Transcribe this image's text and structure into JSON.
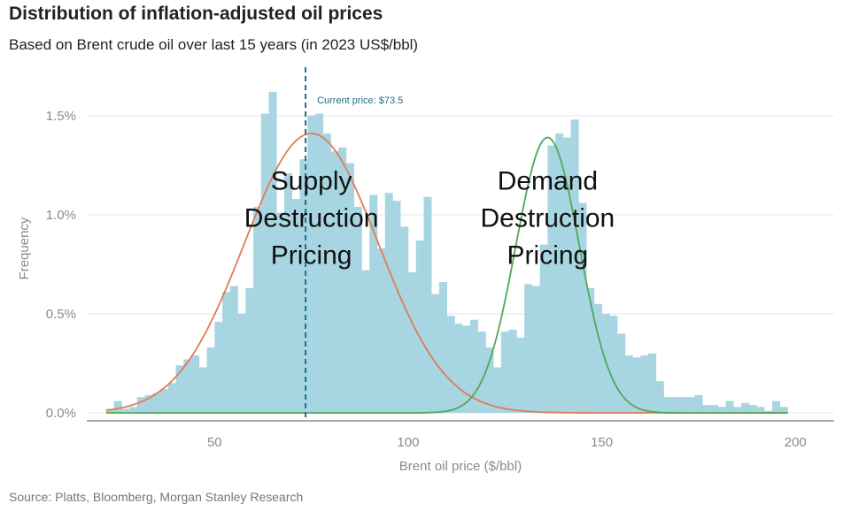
{
  "header": {
    "title": "Distribution of inflation-adjusted oil prices",
    "subtitle": "Based on Brent crude oil over last 15 years (in 2023 US$/bbl)"
  },
  "footer": {
    "source": "Source: Platts, Bloomberg, Morgan Stanley Research"
  },
  "colors": {
    "bars": "#a8d5e2",
    "supply_curve": "#e07b54",
    "demand_curve": "#4daa57",
    "current_price_line": "#1f6e8c",
    "grid": "#e6e6e6"
  },
  "chart_data": {
    "type": "bar",
    "xlabel": "Brent oil price ($/bbl)",
    "ylabel": "Frequency",
    "xlim": [
      17,
      210
    ],
    "ylim": [
      -0.0004,
      0.017
    ],
    "x_ticks": [
      50,
      100,
      150,
      200
    ],
    "x_tick_labels": [
      "50",
      "100",
      "150",
      "200"
    ],
    "y_ticks": [
      0,
      0.005,
      0.01,
      0.015
    ],
    "y_tick_labels": [
      "0.0%",
      "0.5%",
      "1.0%",
      "1.5%"
    ],
    "grid": true,
    "bin_width": 2,
    "histogram": {
      "bin_starts": [
        22,
        24,
        26,
        28,
        30,
        32,
        34,
        36,
        38,
        40,
        42,
        44,
        46,
        48,
        50,
        52,
        54,
        56,
        58,
        60,
        62,
        64,
        66,
        68,
        70,
        72,
        74,
        76,
        78,
        80,
        82,
        84,
        86,
        88,
        90,
        92,
        94,
        96,
        98,
        100,
        102,
        104,
        106,
        108,
        110,
        112,
        114,
        116,
        118,
        120,
        122,
        124,
        126,
        128,
        130,
        132,
        134,
        136,
        138,
        140,
        142,
        144,
        146,
        148,
        150,
        152,
        154,
        156,
        158,
        160,
        162,
        164,
        166,
        168,
        170,
        172,
        174,
        176,
        178,
        180,
        182,
        184,
        186,
        188,
        190,
        192,
        194,
        196
      ],
      "frequencies": [
        0.0002,
        0.0006,
        0.0002,
        0.0003,
        0.0008,
        0.0009,
        0.001,
        0.0012,
        0.0015,
        0.0024,
        0.0027,
        0.0029,
        0.0023,
        0.0033,
        0.0046,
        0.0061,
        0.0064,
        0.005,
        0.0063,
        0.0104,
        0.0151,
        0.0162,
        0.0101,
        0.0121,
        0.0108,
        0.0128,
        0.015,
        0.0151,
        0.0141,
        0.0132,
        0.0134,
        0.0126,
        0.0104,
        0.0072,
        0.011,
        0.0083,
        0.0111,
        0.0107,
        0.0094,
        0.0071,
        0.0087,
        0.0109,
        0.006,
        0.0066,
        0.0049,
        0.0045,
        0.0044,
        0.0047,
        0.0041,
        0.0033,
        0.0023,
        0.0041,
        0.0042,
        0.0038,
        0.0065,
        0.0064,
        0.0085,
        0.0135,
        0.0141,
        0.0139,
        0.0148,
        0.0106,
        0.0063,
        0.0055,
        0.005,
        0.0049,
        0.004,
        0.0029,
        0.0028,
        0.0029,
        0.003,
        0.0016,
        0.0008,
        0.0008,
        0.0008,
        0.0008,
        0.0009,
        0.0004,
        0.0004,
        0.0003,
        0.0006,
        0.0003,
        0.0005,
        0.0004,
        0.0003,
        0.0001,
        0.0006,
        0.0003
      ]
    },
    "series": [
      {
        "type": "normal-curve",
        "mean": 75,
        "sd": 17.3,
        "peak": 0.0141
      },
      {
        "type": "normal-curve",
        "mean": 136,
        "sd": 8.2,
        "peak": 0.0139
      }
    ],
    "reference_line": {
      "x": 73.5,
      "label": "Current price: $73.5"
    },
    "annotations": [
      {
        "lines": [
          "Supply",
          "Destruction",
          "Pricing"
        ],
        "x": 75,
        "y": 0.0098
      },
      {
        "lines": [
          "Demand",
          "Destruction",
          "Pricing"
        ],
        "x": 136,
        "y": 0.0098
      }
    ]
  }
}
